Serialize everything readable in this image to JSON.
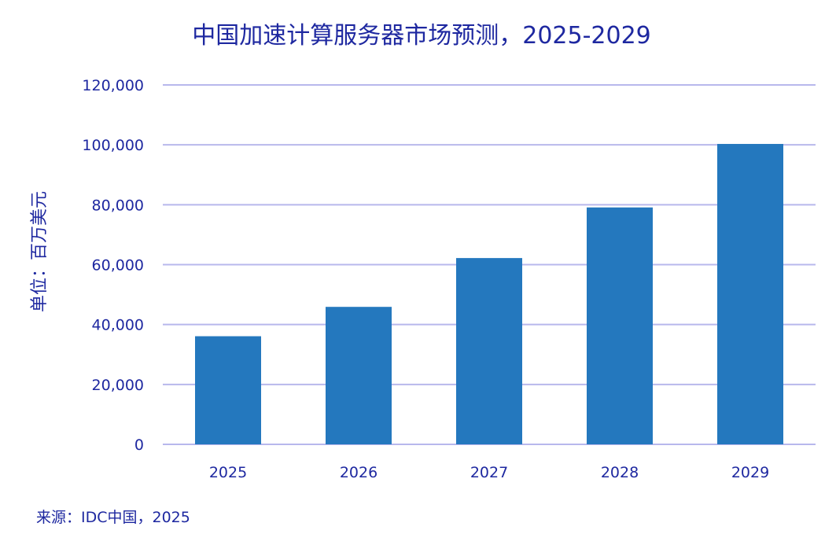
{
  "chart_data": {
    "type": "bar",
    "title": "中国加速计算服务器市场预测，2025-2029",
    "xlabel": "",
    "ylabel": "单位：百万美元",
    "categories": [
      "2025",
      "2026",
      "2027",
      "2028",
      "2029"
    ],
    "values": [
      36100,
      45900,
      62200,
      79100,
      100300
    ],
    "ylim": [
      0,
      120000
    ],
    "yticks": [
      0,
      20000,
      40000,
      60000,
      80000,
      100000,
      120000
    ],
    "ytick_labels": [
      "0",
      "20,000",
      "40,000",
      "60,000",
      "80,000",
      "100,000",
      "120,000"
    ],
    "grid": true,
    "bar_color": "#2478be",
    "source": "来源：IDC中国，2025"
  }
}
